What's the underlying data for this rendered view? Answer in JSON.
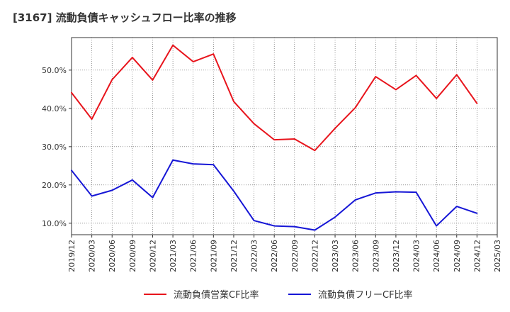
{
  "title": "[3167]  流動負債キャッシュフロー比率の推移",
  "chart_data": {
    "type": "line",
    "title": "[3167]  流動負債キャッシュフロー比率の推移",
    "xlabel": "",
    "ylabel": "",
    "ylim": [
      7.0,
      58.5
    ],
    "yticks": [
      10,
      20,
      30,
      40,
      50
    ],
    "ytick_labels": [
      "10.0%",
      "20.0%",
      "30.0%",
      "40.0%",
      "50.0%"
    ],
    "x": [
      "2019/12",
      "2020/03",
      "2020/06",
      "2020/09",
      "2020/12",
      "2021/03",
      "2021/06",
      "2021/09",
      "2021/12",
      "2022/03",
      "2022/06",
      "2022/09",
      "2022/12",
      "2023/03",
      "2023/06",
      "2023/09",
      "2023/12",
      "2024/03",
      "2024/06",
      "2024/09",
      "2024/12",
      "2025/03"
    ],
    "grid": true,
    "legend_position": "bottom",
    "series": [
      {
        "name": "流動負債営業CF比率",
        "color": "#e8141c",
        "values": [
          44.1,
          37.2,
          47.5,
          53.3,
          47.4,
          56.5,
          52.2,
          54.2,
          41.8,
          36.0,
          31.8,
          32.0,
          29.0,
          34.8,
          40.2,
          48.3,
          44.9,
          48.6,
          42.6,
          48.8,
          41.3,
          null
        ]
      },
      {
        "name": "流動負債フリーCF比率",
        "color": "#1616d6",
        "values": [
          23.8,
          17.1,
          18.6,
          21.3,
          16.7,
          26.5,
          25.5,
          25.3,
          18.4,
          10.7,
          9.3,
          9.1,
          8.2,
          11.6,
          16.1,
          17.9,
          18.2,
          18.1,
          9.3,
          14.4,
          12.6,
          null
        ]
      }
    ]
  }
}
